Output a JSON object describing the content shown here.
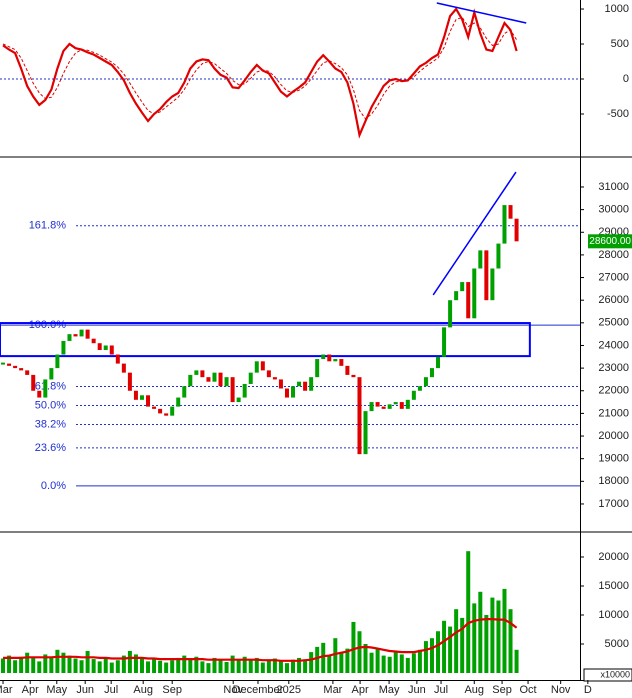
{
  "chart_data": [
    {
      "type": "line",
      "xlim": [
        -0.5,
        95.5
      ],
      "ylim": [
        -1086,
        1129
      ],
      "yticks": [
        -500,
        0,
        500,
        1000
      ],
      "zero_line": true,
      "series": [
        {
          "color": "#e00000",
          "dashed": false,
          "values": [
            480,
            420,
            370,
            150,
            -100,
            -250,
            -370,
            -300,
            -150,
            150,
            400,
            500,
            440,
            420,
            380,
            350,
            300,
            250,
            200,
            100,
            -20,
            -200,
            -350,
            -480,
            -600,
            -500,
            -430,
            -330,
            -250,
            -200,
            -50,
            150,
            250,
            280,
            270,
            150,
            60,
            20,
            -120,
            -130,
            -20,
            100,
            200,
            120,
            80,
            -50,
            -180,
            -250,
            -180,
            -120,
            -50,
            100,
            250,
            340,
            250,
            150,
            100,
            -50,
            -350,
            -800,
            -600,
            -400,
            -250,
            -100,
            -20,
            0,
            -30,
            -20,
            80,
            180,
            230,
            300,
            350,
            600,
            900,
            1000,
            850,
            600,
            950,
            650,
            420,
            400,
            600,
            800,
            700,
            400
          ]
        },
        {
          "color": "#e00000",
          "dashed": true,
          "values": [
            500,
            460,
            420,
            300,
            120,
            -60,
            -200,
            -280,
            -260,
            -120,
            80,
            250,
            370,
            420,
            410,
            380,
            340,
            290,
            240,
            170,
            70,
            -60,
            -200,
            -330,
            -450,
            -500,
            -470,
            -400,
            -330,
            -260,
            -150,
            0,
            130,
            220,
            250,
            220,
            150,
            80,
            -20,
            -80,
            -70,
            10,
            100,
            130,
            110,
            30,
            -80,
            -170,
            -190,
            -160,
            -100,
            0,
            120,
            230,
            260,
            220,
            160,
            60,
            -150,
            -450,
            -570,
            -500,
            -380,
            -220,
            -100,
            -40,
            -30,
            -25,
            30,
            110,
            180,
            240,
            300,
            450,
            680,
            850,
            880,
            750,
            800,
            730,
            580,
            480,
            500,
            650,
            700,
            560
          ]
        }
      ],
      "trendlines": [
        {
          "color": "#0000ff",
          "x": [
            71.8,
            86.6
          ],
          "y": [
            1086,
            800
          ]
        }
      ]
    },
    {
      "type": "candlestick",
      "xlim": [
        -0.5,
        95.5
      ],
      "ylim": [
        15850,
        32280
      ],
      "yticks": [
        17000,
        18000,
        19000,
        20000,
        21000,
        22000,
        23000,
        24000,
        25000,
        26000,
        27000,
        28000,
        29000,
        30000,
        31000
      ],
      "up_color": "#00a000",
      "down_color": "#e00000",
      "close": [
        23200,
        23100,
        23000,
        22900,
        22700,
        22000,
        21700,
        22500,
        23000,
        23600,
        24200,
        24500,
        24400,
        24700,
        24300,
        24100,
        23800,
        24000,
        23600,
        23200,
        22800,
        22000,
        21600,
        21800,
        21300,
        21200,
        21000,
        20900,
        21300,
        21700,
        22200,
        22700,
        22900,
        22600,
        22400,
        22800,
        22200,
        22600,
        21500,
        21700,
        22300,
        22800,
        23300,
        22900,
        22600,
        22500,
        22100,
        21700,
        22200,
        22400,
        22000,
        22600,
        23400,
        23600,
        23300,
        23400,
        23100,
        22700,
        22600,
        19200,
        21100,
        21500,
        21300,
        21200,
        21400,
        21500,
        21200,
        21600,
        22000,
        22200,
        22600,
        23000,
        23500,
        24800,
        26000,
        26400,
        26800,
        25200,
        27400,
        28200,
        26000,
        27400,
        28500,
        30200,
        29600,
        28600
      ],
      "last_price": {
        "value": 28600,
        "label": "28600.00"
      },
      "fib_levels": [
        {
          "value": 29288,
          "label": "161.8%"
        },
        {
          "value": 24900,
          "label": "100.0%"
        },
        {
          "value": 22188,
          "label": "61.8%"
        },
        {
          "value": 21350,
          "label": "50.0%"
        },
        {
          "value": 20512,
          "label": "38.2%"
        },
        {
          "value": 19476,
          "label": "23.6%"
        },
        {
          "value": 17800,
          "label": "0.0%"
        }
      ],
      "zone": {
        "color": "#0000ff",
        "x": [
          -0.5,
          87.2
        ],
        "y": [
          23530,
          24990
        ]
      },
      "trendlines": [
        {
          "color": "#0000ff",
          "x": [
            71.2,
            84.9
          ],
          "y": [
            26230,
            31660
          ]
        }
      ]
    },
    {
      "type": "bar",
      "xlim": [
        -0.5,
        95.5
      ],
      "ylim": [
        0,
        23790
      ],
      "yticks": [
        5000,
        10000,
        15000,
        20000
      ],
      "unit_label": "x10000",
      "color": "#00a000",
      "values": [
        2500,
        3000,
        2200,
        2800,
        3500,
        2600,
        2000,
        3200,
        2800,
        4000,
        3500,
        3000,
        2500,
        2200,
        3800,
        2400,
        2000,
        2600,
        1800,
        2200,
        3000,
        3800,
        3200,
        2600,
        2000,
        2400,
        2100,
        1800,
        2200,
        2600,
        3000,
        2400,
        2800,
        2000,
        1700,
        2600,
        2200,
        1900,
        3000,
        2400,
        2800,
        2200,
        2600,
        1800,
        2100,
        2500,
        2000,
        1700,
        2300,
        2600,
        2200,
        3600,
        4500,
        5200,
        3000,
        6000,
        3500,
        4200,
        8800,
        7200,
        5000,
        3500,
        4200,
        3000,
        2800,
        3600,
        3200,
        2600,
        3400,
        4000,
        5500,
        6000,
        7200,
        9000,
        8000,
        11000,
        9500,
        21000,
        12000,
        14000,
        10000,
        13000,
        12500,
        14500,
        11000,
        4000
      ],
      "average": {
        "color": "#e00000",
        "values": [
          2600,
          2600,
          2600,
          2600,
          2700,
          2700,
          2700,
          2700,
          2700,
          2800,
          2800,
          2800,
          2800,
          2700,
          2700,
          2700,
          2600,
          2600,
          2500,
          2500,
          2500,
          2600,
          2600,
          2600,
          2500,
          2500,
          2400,
          2400,
          2400,
          2400,
          2400,
          2400,
          2400,
          2400,
          2300,
          2300,
          2300,
          2300,
          2300,
          2300,
          2300,
          2300,
          2300,
          2200,
          2200,
          2200,
          2100,
          2100,
          2100,
          2100,
          2200,
          2300,
          2600,
          2900,
          3000,
          3300,
          3500,
          3700,
          4100,
          4400,
          4500,
          4400,
          4200,
          4000,
          3800,
          3700,
          3600,
          3600,
          3600,
          3800,
          4000,
          4300,
          4800,
          5500,
          6200,
          7000,
          7600,
          8600,
          9000,
          9200,
          9300,
          9300,
          9200,
          9200,
          8600,
          7800
        ]
      },
      "xticks": [
        {
          "value": 0,
          "label": "Mar"
        },
        {
          "value": 4.5,
          "label": "Apr"
        },
        {
          "value": 8.9,
          "label": "May"
        },
        {
          "value": 13.6,
          "label": "Jun"
        },
        {
          "value": 17.9,
          "label": "Jul"
        },
        {
          "value": 23.2,
          "label": "Aug"
        },
        {
          "value": 28,
          "label": "Sep"
        },
        {
          "value": 38.1,
          "label": "Nov"
        },
        {
          "value": 42.2,
          "label": "December"
        },
        {
          "value": 47.3,
          "label": "2025"
        },
        {
          "value": 54.6,
          "label": "Mar"
        },
        {
          "value": 59.1,
          "label": "Apr"
        },
        {
          "value": 63.9,
          "label": "May"
        },
        {
          "value": 68.5,
          "label": "Jun"
        },
        {
          "value": 72.5,
          "label": "Jul"
        },
        {
          "value": 78,
          "label": "Aug"
        },
        {
          "value": 82.6,
          "label": "Sep"
        },
        {
          "value": 86.9,
          "label": "Oct"
        },
        {
          "value": 92.3,
          "label": "Nov"
        },
        {
          "value": 96.8,
          "label": "D"
        }
      ]
    }
  ]
}
